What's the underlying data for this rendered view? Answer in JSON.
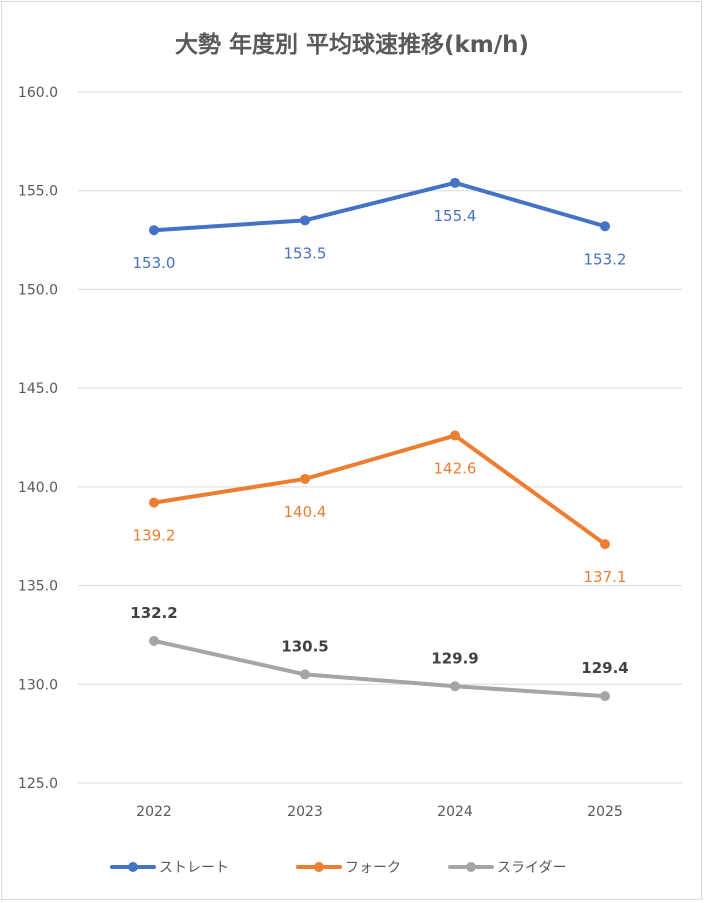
{
  "chart_data": {
    "type": "line",
    "title": "大勢 年度別 平均球速推移(km/h)",
    "xlabel": "",
    "ylabel": "",
    "categories": [
      "2022",
      "2023",
      "2024",
      "2025"
    ],
    "ylim": [
      125,
      160
    ],
    "yticks": [
      160,
      155,
      150,
      145,
      140,
      135,
      130,
      125
    ],
    "ytick_labels": [
      "160.0",
      "155.0",
      "150.0",
      "145.0",
      "140.0",
      "135.0",
      "130.0",
      "125.0"
    ],
    "grid": true,
    "legend_position": "bottom",
    "series": [
      {
        "name": "ストレート",
        "color": "#4472c4",
        "label_color": "#4472c4",
        "label_position": "below",
        "values": [
          153.0,
          153.5,
          155.4,
          153.2
        ],
        "labels": [
          "153.0",
          "153.5",
          "155.4",
          "153.2"
        ]
      },
      {
        "name": "フォーク",
        "color": "#ed7d31",
        "label_color": "#ed7d31",
        "label_position": "below",
        "values": [
          139.2,
          140.4,
          142.6,
          137.1
        ],
        "labels": [
          "139.2",
          "140.4",
          "142.6",
          "137.1"
        ]
      },
      {
        "name": "スライダー",
        "color": "#a5a5a5",
        "label_color": "#404040",
        "label_position": "above",
        "values": [
          132.2,
          130.5,
          129.9,
          129.4
        ],
        "labels": [
          "132.2",
          "130.5",
          "129.9",
          "129.4"
        ]
      }
    ]
  }
}
